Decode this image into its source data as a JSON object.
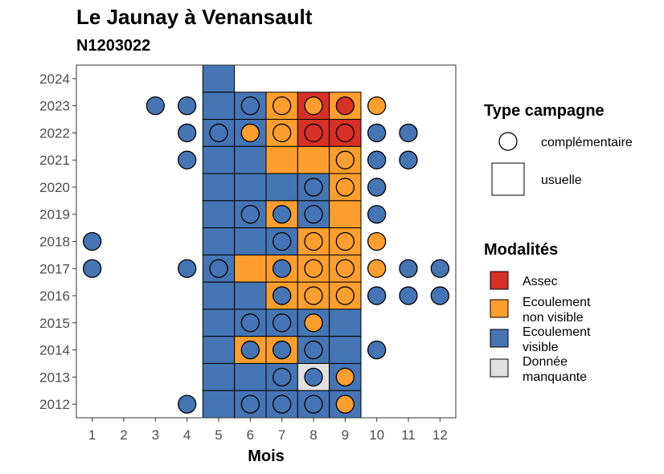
{
  "chart_data": {
    "type": "heatmap",
    "title": "Le Jaunay à Venansault",
    "subtitle": "N1203022",
    "xlabel": "Mois",
    "ylabel": "",
    "x_ticks": [
      "1",
      "2",
      "3",
      "4",
      "5",
      "6",
      "7",
      "8",
      "9",
      "10",
      "11",
      "12"
    ],
    "y_ticks": [
      "2012",
      "2013",
      "2014",
      "2015",
      "2016",
      "2017",
      "2018",
      "2019",
      "2020",
      "2021",
      "2022",
      "2023",
      "2024"
    ],
    "xlim": [
      0.5,
      12.5
    ],
    "ylim": [
      2011.5,
      2024.5
    ],
    "grid": false,
    "legend_position": "right",
    "colors": {
      "Assec": "#d73027",
      "Ecoulement non visible": "#fd9e2e",
      "Ecoulement visible": "#4575b4",
      "Donnée manquante": "#e0e0e0"
    },
    "legends": {
      "type_title": "Type campagne",
      "type_items": [
        {
          "shape": "circle",
          "label": "complémentaire"
        },
        {
          "shape": "square",
          "label": "usuelle"
        }
      ],
      "modalites_title": "Modalités",
      "modalites_items": [
        {
          "label": "Assec",
          "lines": [
            "Assec"
          ],
          "color": "#d73027"
        },
        {
          "label": "Ecoulement non visible",
          "lines": [
            "Ecoulement",
            "non visible"
          ],
          "color": "#fd9e2e"
        },
        {
          "label": "Ecoulement visible",
          "lines": [
            "Ecoulement",
            "visible"
          ],
          "color": "#4575b4"
        },
        {
          "label": "Donnée manquante",
          "lines": [
            "Donnée",
            "manquante"
          ],
          "color": "#e0e0e0"
        }
      ]
    },
    "tiles": [
      {
        "year": 2024,
        "month": 5,
        "modalite": "Ecoulement visible"
      },
      {
        "year": 2023,
        "month": 5,
        "modalite": "Ecoulement visible"
      },
      {
        "year": 2023,
        "month": 6,
        "modalite": "Ecoulement visible"
      },
      {
        "year": 2023,
        "month": 7,
        "modalite": "Ecoulement non visible"
      },
      {
        "year": 2023,
        "month": 8,
        "modalite": "Assec"
      },
      {
        "year": 2023,
        "month": 9,
        "modalite": "Ecoulement non visible"
      },
      {
        "year": 2022,
        "month": 5,
        "modalite": "Ecoulement visible"
      },
      {
        "year": 2022,
        "month": 6,
        "modalite": "Ecoulement visible"
      },
      {
        "year": 2022,
        "month": 7,
        "modalite": "Ecoulement non visible"
      },
      {
        "year": 2022,
        "month": 8,
        "modalite": "Assec"
      },
      {
        "year": 2022,
        "month": 9,
        "modalite": "Assec"
      },
      {
        "year": 2021,
        "month": 5,
        "modalite": "Ecoulement visible"
      },
      {
        "year": 2021,
        "month": 6,
        "modalite": "Ecoulement visible"
      },
      {
        "year": 2021,
        "month": 7,
        "modalite": "Ecoulement non visible"
      },
      {
        "year": 2021,
        "month": 8,
        "modalite": "Ecoulement non visible"
      },
      {
        "year": 2021,
        "month": 9,
        "modalite": "Ecoulement non visible"
      },
      {
        "year": 2020,
        "month": 5,
        "modalite": "Ecoulement visible"
      },
      {
        "year": 2020,
        "month": 6,
        "modalite": "Ecoulement visible"
      },
      {
        "year": 2020,
        "month": 7,
        "modalite": "Ecoulement visible"
      },
      {
        "year": 2020,
        "month": 8,
        "modalite": "Ecoulement visible"
      },
      {
        "year": 2020,
        "month": 9,
        "modalite": "Ecoulement non visible"
      },
      {
        "year": 2019,
        "month": 5,
        "modalite": "Ecoulement visible"
      },
      {
        "year": 2019,
        "month": 6,
        "modalite": "Ecoulement visible"
      },
      {
        "year": 2019,
        "month": 7,
        "modalite": "Ecoulement non visible"
      },
      {
        "year": 2019,
        "month": 8,
        "modalite": "Ecoulement visible"
      },
      {
        "year": 2019,
        "month": 9,
        "modalite": "Ecoulement non visible"
      },
      {
        "year": 2018,
        "month": 5,
        "modalite": "Ecoulement visible"
      },
      {
        "year": 2018,
        "month": 6,
        "modalite": "Ecoulement visible"
      },
      {
        "year": 2018,
        "month": 7,
        "modalite": "Ecoulement visible"
      },
      {
        "year": 2018,
        "month": 8,
        "modalite": "Ecoulement non visible"
      },
      {
        "year": 2018,
        "month": 9,
        "modalite": "Ecoulement non visible"
      },
      {
        "year": 2017,
        "month": 5,
        "modalite": "Ecoulement visible"
      },
      {
        "year": 2017,
        "month": 6,
        "modalite": "Ecoulement non visible"
      },
      {
        "year": 2017,
        "month": 7,
        "modalite": "Ecoulement non visible"
      },
      {
        "year": 2017,
        "month": 8,
        "modalite": "Ecoulement non visible"
      },
      {
        "year": 2017,
        "month": 9,
        "modalite": "Ecoulement non visible"
      },
      {
        "year": 2016,
        "month": 5,
        "modalite": "Ecoulement visible"
      },
      {
        "year": 2016,
        "month": 6,
        "modalite": "Ecoulement visible"
      },
      {
        "year": 2016,
        "month": 7,
        "modalite": "Ecoulement non visible"
      },
      {
        "year": 2016,
        "month": 8,
        "modalite": "Ecoulement non visible"
      },
      {
        "year": 2016,
        "month": 9,
        "modalite": "Ecoulement non visible"
      },
      {
        "year": 2015,
        "month": 5,
        "modalite": "Ecoulement visible"
      },
      {
        "year": 2015,
        "month": 6,
        "modalite": "Ecoulement visible"
      },
      {
        "year": 2015,
        "month": 7,
        "modalite": "Ecoulement visible"
      },
      {
        "year": 2015,
        "month": 8,
        "modalite": "Ecoulement visible"
      },
      {
        "year": 2015,
        "month": 9,
        "modalite": "Ecoulement visible"
      },
      {
        "year": 2014,
        "month": 5,
        "modalite": "Ecoulement visible"
      },
      {
        "year": 2014,
        "month": 6,
        "modalite": "Ecoulement non visible"
      },
      {
        "year": 2014,
        "month": 7,
        "modalite": "Ecoulement non visible"
      },
      {
        "year": 2014,
        "month": 8,
        "modalite": "Ecoulement visible"
      },
      {
        "year": 2014,
        "month": 9,
        "modalite": "Ecoulement visible"
      },
      {
        "year": 2013,
        "month": 5,
        "modalite": "Ecoulement visible"
      },
      {
        "year": 2013,
        "month": 6,
        "modalite": "Ecoulement visible"
      },
      {
        "year": 2013,
        "month": 7,
        "modalite": "Ecoulement visible"
      },
      {
        "year": 2013,
        "month": 8,
        "modalite": "Donnée manquante"
      },
      {
        "year": 2013,
        "month": 9,
        "modalite": "Ecoulement visible"
      },
      {
        "year": 2012,
        "month": 5,
        "modalite": "Ecoulement visible"
      },
      {
        "year": 2012,
        "month": 6,
        "modalite": "Ecoulement visible"
      },
      {
        "year": 2012,
        "month": 7,
        "modalite": "Ecoulement visible"
      },
      {
        "year": 2012,
        "month": 8,
        "modalite": "Ecoulement visible"
      },
      {
        "year": 2012,
        "month": 9,
        "modalite": "Ecoulement visible"
      }
    ],
    "points": [
      {
        "year": 2023,
        "month": 3,
        "modalite": "Ecoulement visible"
      },
      {
        "year": 2023,
        "month": 4,
        "modalite": "Ecoulement visible"
      },
      {
        "year": 2023,
        "month": 6,
        "modalite": "Ecoulement visible"
      },
      {
        "year": 2023,
        "month": 7,
        "modalite": "Ecoulement non visible"
      },
      {
        "year": 2023,
        "month": 8,
        "modalite": "Ecoulement non visible"
      },
      {
        "year": 2023,
        "month": 9,
        "modalite": "Assec"
      },
      {
        "year": 2023,
        "month": 10,
        "modalite": "Ecoulement non visible"
      },
      {
        "year": 2022,
        "month": 4,
        "modalite": "Ecoulement visible"
      },
      {
        "year": 2022,
        "month": 5,
        "modalite": "Ecoulement visible"
      },
      {
        "year": 2022,
        "month": 6,
        "modalite": "Ecoulement non visible"
      },
      {
        "year": 2022,
        "month": 7,
        "modalite": "Ecoulement non visible"
      },
      {
        "year": 2022,
        "month": 8,
        "modalite": "Assec"
      },
      {
        "year": 2022,
        "month": 9,
        "modalite": "Assec"
      },
      {
        "year": 2022,
        "month": 10,
        "modalite": "Ecoulement visible"
      },
      {
        "year": 2022,
        "month": 11,
        "modalite": "Ecoulement visible"
      },
      {
        "year": 2021,
        "month": 4,
        "modalite": "Ecoulement visible"
      },
      {
        "year": 2021,
        "month": 9,
        "modalite": "Ecoulement non visible"
      },
      {
        "year": 2021,
        "month": 10,
        "modalite": "Ecoulement visible"
      },
      {
        "year": 2021,
        "month": 11,
        "modalite": "Ecoulement visible"
      },
      {
        "year": 2020,
        "month": 8,
        "modalite": "Ecoulement visible"
      },
      {
        "year": 2020,
        "month": 9,
        "modalite": "Ecoulement non visible"
      },
      {
        "year": 2020,
        "month": 10,
        "modalite": "Ecoulement visible"
      },
      {
        "year": 2019,
        "month": 6,
        "modalite": "Ecoulement visible"
      },
      {
        "year": 2019,
        "month": 7,
        "modalite": "Ecoulement visible"
      },
      {
        "year": 2019,
        "month": 8,
        "modalite": "Ecoulement visible"
      },
      {
        "year": 2019,
        "month": 10,
        "modalite": "Ecoulement visible"
      },
      {
        "year": 2018,
        "month": 1,
        "modalite": "Ecoulement visible"
      },
      {
        "year": 2018,
        "month": 7,
        "modalite": "Ecoulement visible"
      },
      {
        "year": 2018,
        "month": 8,
        "modalite": "Ecoulement non visible"
      },
      {
        "year": 2018,
        "month": 9,
        "modalite": "Ecoulement non visible"
      },
      {
        "year": 2018,
        "month": 10,
        "modalite": "Ecoulement non visible"
      },
      {
        "year": 2017,
        "month": 1,
        "modalite": "Ecoulement visible"
      },
      {
        "year": 2017,
        "month": 4,
        "modalite": "Ecoulement visible"
      },
      {
        "year": 2017,
        "month": 5,
        "modalite": "Ecoulement visible"
      },
      {
        "year": 2017,
        "month": 7,
        "modalite": "Ecoulement visible"
      },
      {
        "year": 2017,
        "month": 8,
        "modalite": "Ecoulement non visible"
      },
      {
        "year": 2017,
        "month": 9,
        "modalite": "Ecoulement non visible"
      },
      {
        "year": 2017,
        "month": 10,
        "modalite": "Ecoulement non visible"
      },
      {
        "year": 2017,
        "month": 11,
        "modalite": "Ecoulement visible"
      },
      {
        "year": 2017,
        "month": 12,
        "modalite": "Ecoulement visible"
      },
      {
        "year": 2016,
        "month": 7,
        "modalite": "Ecoulement visible"
      },
      {
        "year": 2016,
        "month": 8,
        "modalite": "Ecoulement non visible"
      },
      {
        "year": 2016,
        "month": 9,
        "modalite": "Ecoulement non visible"
      },
      {
        "year": 2016,
        "month": 10,
        "modalite": "Ecoulement visible"
      },
      {
        "year": 2016,
        "month": 11,
        "modalite": "Ecoulement visible"
      },
      {
        "year": 2016,
        "month": 12,
        "modalite": "Ecoulement visible"
      },
      {
        "year": 2015,
        "month": 6,
        "modalite": "Ecoulement visible"
      },
      {
        "year": 2015,
        "month": 7,
        "modalite": "Ecoulement visible"
      },
      {
        "year": 2015,
        "month": 8,
        "modalite": "Ecoulement non visible"
      },
      {
        "year": 2014,
        "month": 6,
        "modalite": "Ecoulement visible"
      },
      {
        "year": 2014,
        "month": 7,
        "modalite": "Ecoulement visible"
      },
      {
        "year": 2014,
        "month": 8,
        "modalite": "Ecoulement visible"
      },
      {
        "year": 2014,
        "month": 10,
        "modalite": "Ecoulement visible"
      },
      {
        "year": 2013,
        "month": 7,
        "modalite": "Ecoulement visible"
      },
      {
        "year": 2013,
        "month": 8,
        "modalite": "Ecoulement visible"
      },
      {
        "year": 2013,
        "month": 9,
        "modalite": "Ecoulement non visible"
      },
      {
        "year": 2012,
        "month": 4,
        "modalite": "Ecoulement visible"
      },
      {
        "year": 2012,
        "month": 6,
        "modalite": "Ecoulement visible"
      },
      {
        "year": 2012,
        "month": 7,
        "modalite": "Ecoulement visible"
      },
      {
        "year": 2012,
        "month": 8,
        "modalite": "Ecoulement visible"
      },
      {
        "year": 2012,
        "month": 9,
        "modalite": "Ecoulement non visible"
      }
    ]
  }
}
